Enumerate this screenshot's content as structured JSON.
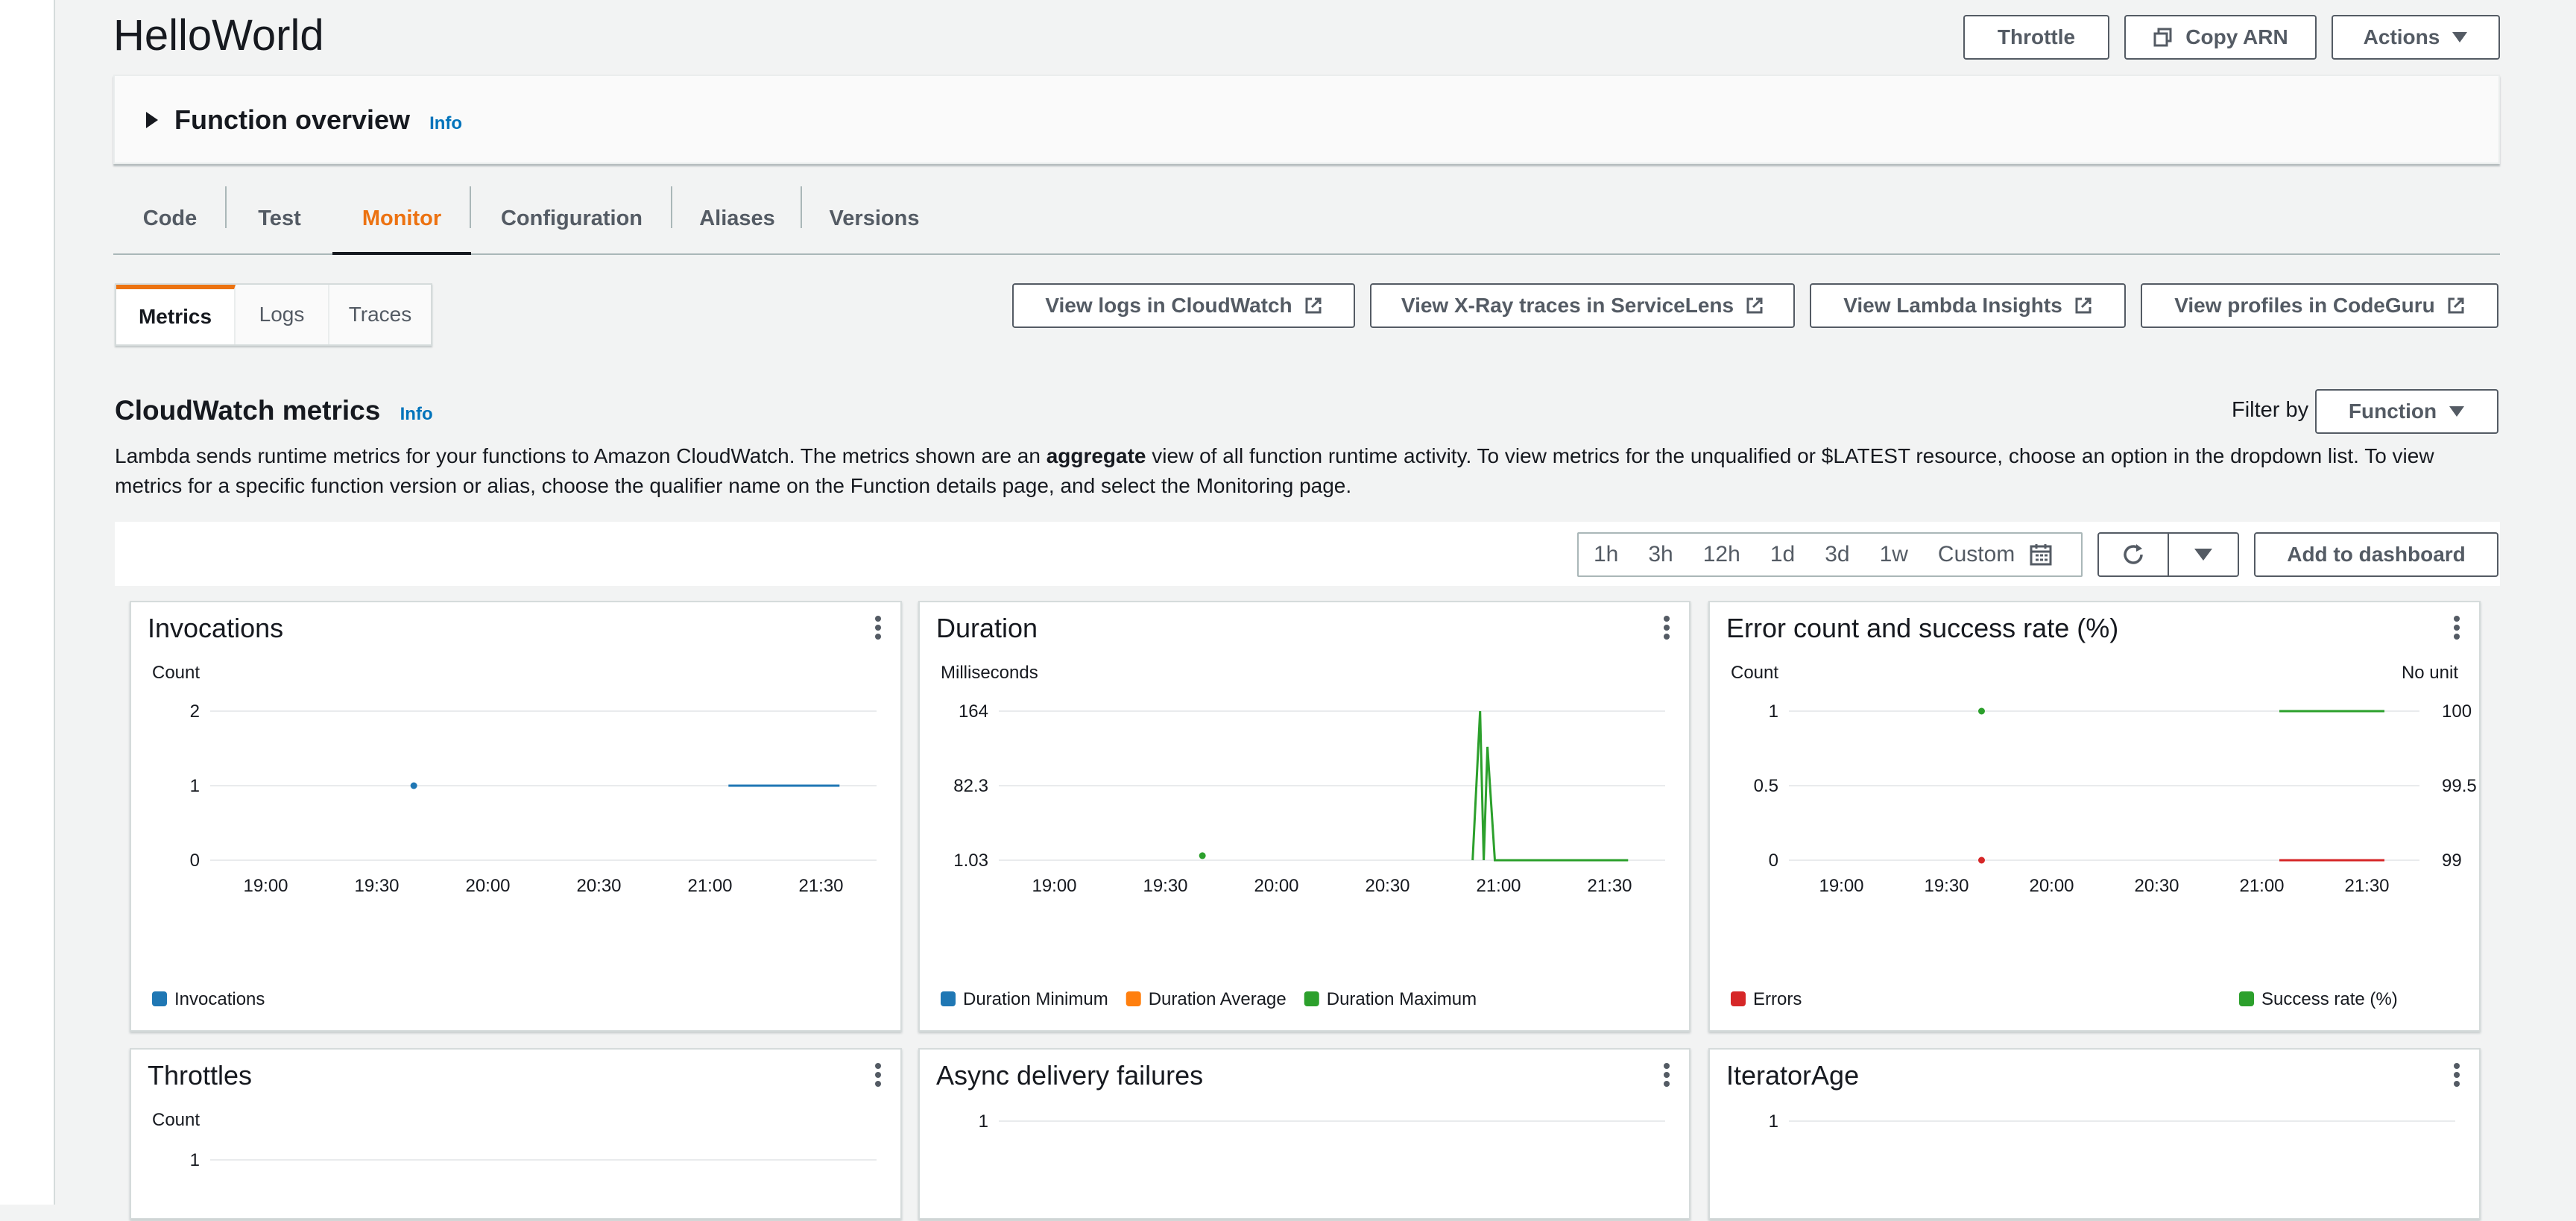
{
  "header": {
    "title": "HelloWorld",
    "throttle_label": "Throttle",
    "copy_arn_label": "Copy ARN",
    "actions_label": "Actions"
  },
  "overview": {
    "title": "Function overview",
    "info": "Info"
  },
  "tabs": [
    "Code",
    "Test",
    "Monitor",
    "Configuration",
    "Aliases",
    "Versions"
  ],
  "active_tab": "Monitor",
  "subtabs": [
    "Metrics",
    "Logs",
    "Traces"
  ],
  "links": {
    "logs": "View logs in CloudWatch",
    "xray": "View X-Ray traces in ServiceLens",
    "insights": "View Lambda Insights",
    "profiles": "View profiles in CodeGuru"
  },
  "metrics": {
    "title": "CloudWatch metrics",
    "info": "Info",
    "filter_label": "Filter by",
    "filter_value": "Function",
    "desc_before": "Lambda sends runtime metrics for your functions to Amazon CloudWatch. The metrics shown are an ",
    "desc_bold": "aggregate",
    "desc_after": " view of all function runtime activity. To view metrics for the unqualified or $LATEST resource, choose an option in the dropdown list. To view metrics for a specific function version or alias, choose the qualifier name on the Function details page, and select the Monitoring page."
  },
  "time_ranges": [
    "1h",
    "3h",
    "12h",
    "1d",
    "3d",
    "1w",
    "Custom"
  ],
  "add_dashboard_label": "Add to dashboard",
  "colors": {
    "blue": "#1f77b4",
    "orange": "#ff7f0e",
    "green": "#2ca02c",
    "red": "#d62728",
    "accent": "#ec7211",
    "link": "#0073bb"
  },
  "chart_data": [
    {
      "type": "line",
      "title": "Invocations",
      "ylabel": "Count",
      "yticks": [
        "0",
        "1",
        "2"
      ],
      "ylim": [
        0,
        2
      ],
      "xticks": [
        "19:00",
        "19:30",
        "20:00",
        "20:30",
        "21:00",
        "21:30"
      ],
      "series": [
        {
          "name": "Invocations",
          "color": "#1f77b4",
          "points": [
            [
              "19:40",
              1
            ],
            [
              "21:05",
              1
            ],
            [
              "21:20",
              1
            ],
            [
              "21:35",
              1
            ]
          ]
        }
      ]
    },
    {
      "type": "line",
      "title": "Duration",
      "ylabel": "Milliseconds",
      "yticks": [
        "1.03",
        "82.3",
        "164"
      ],
      "ylim": [
        1.03,
        164
      ],
      "xticks": [
        "19:00",
        "19:30",
        "20:00",
        "20:30",
        "21:00",
        "21:30"
      ],
      "series": [
        {
          "name": "Duration Minimum",
          "color": "#1f77b4",
          "points": []
        },
        {
          "name": "Duration Average",
          "color": "#ff7f0e",
          "points": []
        },
        {
          "name": "Duration Maximum",
          "color": "#2ca02c",
          "points": [
            [
              "19:40",
              6
            ],
            [
              "20:53",
              1.03
            ],
            [
              "20:55",
              164
            ],
            [
              "20:56",
              1.03
            ],
            [
              "20:57",
              125
            ],
            [
              "20:59",
              1.03
            ],
            [
              "21:35",
              1.03
            ]
          ]
        }
      ]
    },
    {
      "type": "line",
      "title": "Error count and success rate (%)",
      "ylabel": "Count",
      "y2label": "No unit",
      "yticks": [
        "0",
        "0.5",
        "1"
      ],
      "y2ticks": [
        "99",
        "99.5",
        "100"
      ],
      "ylim": [
        0,
        1
      ],
      "y2lim": [
        99,
        100
      ],
      "xticks": [
        "19:00",
        "19:30",
        "20:00",
        "20:30",
        "21:00",
        "21:30"
      ],
      "series": [
        {
          "name": "Errors",
          "color": "#d62728",
          "axis": "left",
          "points": [
            [
              "19:40",
              0
            ],
            [
              "21:05",
              0
            ],
            [
              "21:35",
              0
            ]
          ]
        },
        {
          "name": "Success rate (%)",
          "color": "#2ca02c",
          "axis": "right",
          "points": [
            [
              "19:40",
              100
            ],
            [
              "21:05",
              100
            ],
            [
              "21:35",
              100
            ]
          ]
        }
      ]
    },
    {
      "type": "line",
      "title": "Throttles",
      "ylabel": "Count",
      "yticks": [
        "1"
      ],
      "series": []
    },
    {
      "type": "line",
      "title": "Async delivery failures",
      "yticks": [
        "1"
      ],
      "series": []
    },
    {
      "type": "line",
      "title": "IteratorAge",
      "yticks": [
        "1"
      ],
      "series": []
    }
  ]
}
